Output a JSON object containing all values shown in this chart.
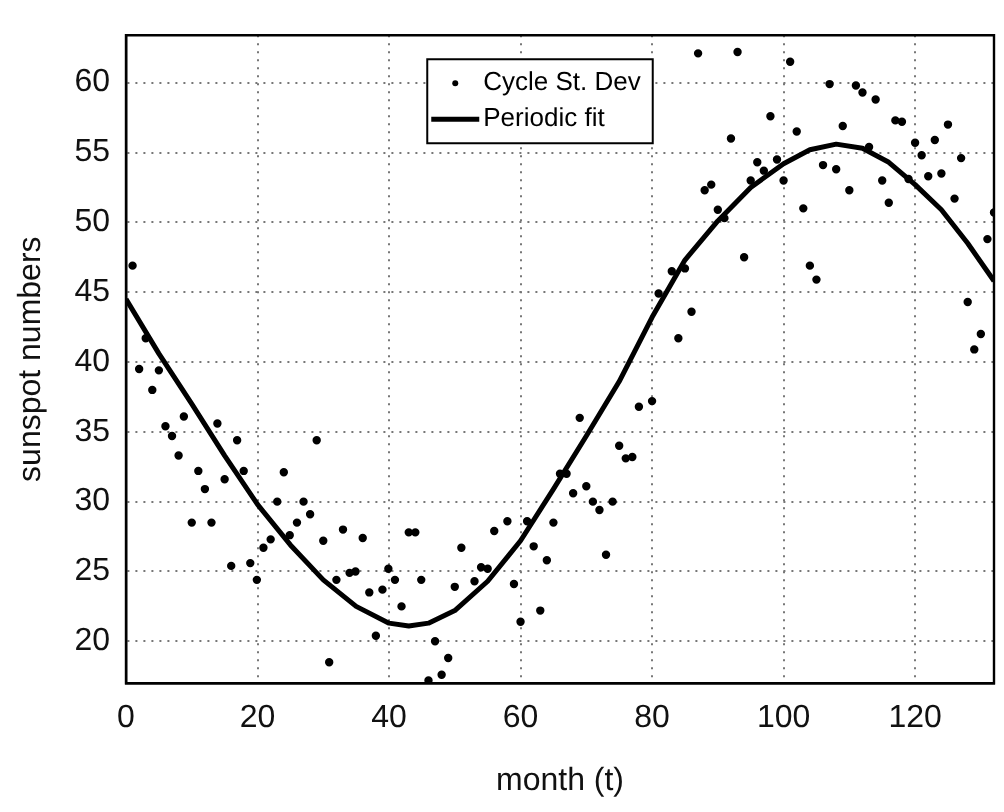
{
  "chart_data": {
    "type": "scatter",
    "xlabel": "month (t)",
    "ylabel": "sunspot numbers",
    "xlim": [
      0,
      132
    ],
    "xticks": [
      0,
      20,
      40,
      60,
      80,
      100,
      120
    ],
    "ylim": [
      17,
      63.4
    ],
    "yticks": [
      20,
      25,
      30,
      35,
      40,
      45,
      50,
      55,
      60
    ],
    "grid": true,
    "legend": "top",
    "series": [
      {
        "name": "Cycle St. Dev",
        "marker": "circle",
        "color": "#000000",
        "x": [
          1,
          2,
          3,
          4,
          5,
          6,
          7,
          8,
          8.8,
          10,
          11,
          12,
          13,
          13.9,
          15,
          16,
          16.9,
          17.9,
          18.9,
          19.9,
          20.9,
          22,
          23,
          24,
          24.9,
          26,
          27,
          28,
          29,
          30,
          30.9,
          32,
          33,
          34,
          34.9,
          36,
          37,
          38,
          39,
          39.9,
          40.9,
          41.9,
          43,
          44,
          44.9,
          46,
          47,
          48,
          49,
          50,
          51,
          53,
          54,
          55,
          56,
          58,
          59,
          60,
          61,
          62,
          63,
          64,
          65,
          66,
          67,
          68,
          69,
          70,
          71,
          72,
          73,
          74,
          75,
          76,
          77,
          78,
          80,
          81,
          83,
          84,
          85,
          86,
          87,
          88,
          89,
          90,
          91,
          92,
          93,
          94,
          95,
          96,
          97,
          98,
          99,
          100,
          101,
          102,
          103,
          104,
          105,
          106,
          107,
          108,
          109,
          110,
          111,
          112,
          113,
          114,
          115,
          116,
          117,
          118,
          119,
          120,
          121,
          122,
          123,
          124,
          125,
          126,
          127,
          128,
          129,
          130,
          131,
          132
        ],
        "values": [
          46.9,
          39.5,
          41.7,
          38.0,
          39.4,
          35.4,
          34.7,
          33.3,
          36.1,
          28.5,
          32.2,
          30.9,
          28.5,
          35.6,
          31.6,
          25.4,
          34.4,
          32.2,
          25.6,
          24.4,
          26.7,
          27.3,
          30,
          32.1,
          27.6,
          28.5,
          30,
          29.1,
          34.4,
          27.2,
          18.5,
          24.4,
          28,
          24.9,
          25,
          27.4,
          23.5,
          20.4,
          23.7,
          25.2,
          24.4,
          22.5,
          27.8,
          27.8,
          24.4,
          17.2,
          20.0,
          17.6,
          18.8,
          23.9,
          26.7,
          24.3,
          25.3,
          25.2,
          27.9,
          28.6,
          24.1,
          21.4,
          28.6,
          26.8,
          22.2,
          25.8,
          28.5,
          32.0,
          32.0,
          30.6,
          36.0,
          31.1,
          30.0,
          29.4,
          26.2,
          30.0,
          34.0,
          33.1,
          33.2,
          36.8,
          37.2,
          44.9,
          46.5,
          41.7,
          46.7,
          43.6,
          62.1,
          52.3,
          52.7,
          50.9,
          50.3,
          56.0,
          62.2,
          47.5,
          53,
          54.3,
          53.7,
          57.6,
          54.5,
          53,
          61.5,
          56.5,
          51,
          46.9,
          45.9,
          54.1,
          59.9,
          53.8,
          56.9,
          52.3,
          59.8,
          59.3,
          55.4,
          58.8,
          53,
          51.4,
          57.3,
          57.2,
          53.1,
          55.7,
          54.8,
          53.3,
          55.9,
          53.5,
          57,
          51.7,
          54.6,
          44.3,
          40.9,
          42,
          48.8,
          50.7
        ]
      },
      {
        "name": "Periodic fit",
        "type": "line",
        "marker": "none",
        "line_style": "solid",
        "color": "#000000",
        "x": [
          0,
          5,
          10,
          15,
          20,
          25,
          30,
          35,
          40,
          43,
          46,
          50,
          55,
          60,
          65,
          70,
          75,
          80,
          85,
          90,
          95,
          100,
          104,
          108,
          112,
          116,
          120,
          124,
          128,
          132
        ],
        "values": [
          44.5,
          40.6,
          37.0,
          33.3,
          29.8,
          26.9,
          24.4,
          22.5,
          21.3,
          21.1,
          21.3,
          22.2,
          24.3,
          27.2,
          30.9,
          34.7,
          38.6,
          43.2,
          47.3,
          50.1,
          52.5,
          54.2,
          55.2,
          55.6,
          55.3,
          54.3,
          52.7,
          50.9,
          48.5,
          45.8
        ]
      }
    ]
  }
}
